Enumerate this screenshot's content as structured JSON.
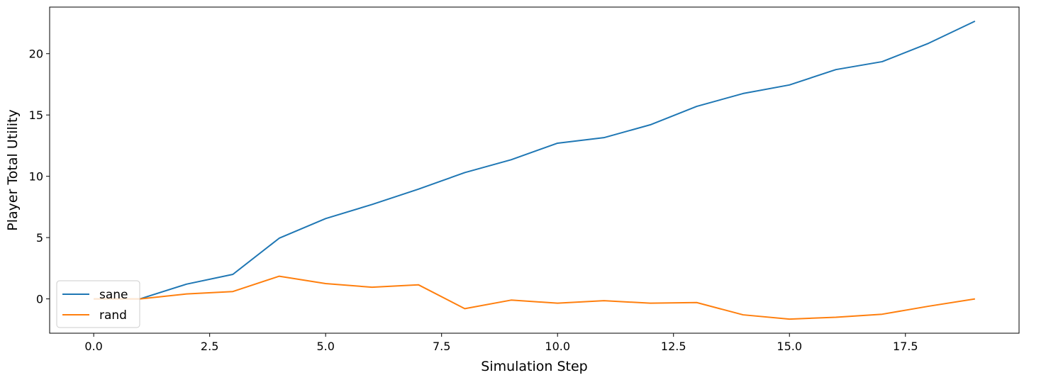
{
  "chart_data": {
    "type": "line",
    "title": "",
    "xlabel": "Simulation Step",
    "ylabel": "Player Total Utility",
    "xlim": [
      -0.95,
      19.95
    ],
    "ylim": [
      -2.8,
      23.8
    ],
    "x_ticks": [
      0.0,
      2.5,
      5.0,
      7.5,
      10.0,
      12.5,
      15.0,
      17.5
    ],
    "x_tick_labels": [
      "0.0",
      "2.5",
      "5.0",
      "7.5",
      "10.0",
      "12.5",
      "15.0",
      "17.5"
    ],
    "y_ticks": [
      0,
      5,
      10,
      15,
      20
    ],
    "y_tick_labels": [
      "0",
      "5",
      "10",
      "15",
      "20"
    ],
    "grid": false,
    "legend_position": "lower-left",
    "x": [
      0,
      1,
      2,
      3,
      4,
      5,
      6,
      7,
      8,
      9,
      10,
      11,
      12,
      13,
      14,
      15,
      16,
      17,
      18,
      19
    ],
    "series": [
      {
        "name": "sane",
        "color": "#1f77b4",
        "values": [
          0.0,
          0.0,
          1.2,
          2.0,
          4.95,
          6.55,
          7.7,
          8.95,
          10.3,
          11.35,
          12.7,
          13.15,
          14.2,
          15.7,
          16.75,
          17.45,
          18.7,
          19.35,
          20.85,
          22.65
        ]
      },
      {
        "name": "rand",
        "color": "#ff7f0e",
        "values": [
          0.0,
          0.0,
          0.4,
          0.6,
          1.85,
          1.25,
          0.95,
          1.15,
          -0.8,
          -0.1,
          -0.35,
          -0.15,
          -0.35,
          -0.3,
          -1.3,
          -1.65,
          -1.5,
          -1.25,
          -0.6,
          0.0
        ]
      }
    ]
  }
}
